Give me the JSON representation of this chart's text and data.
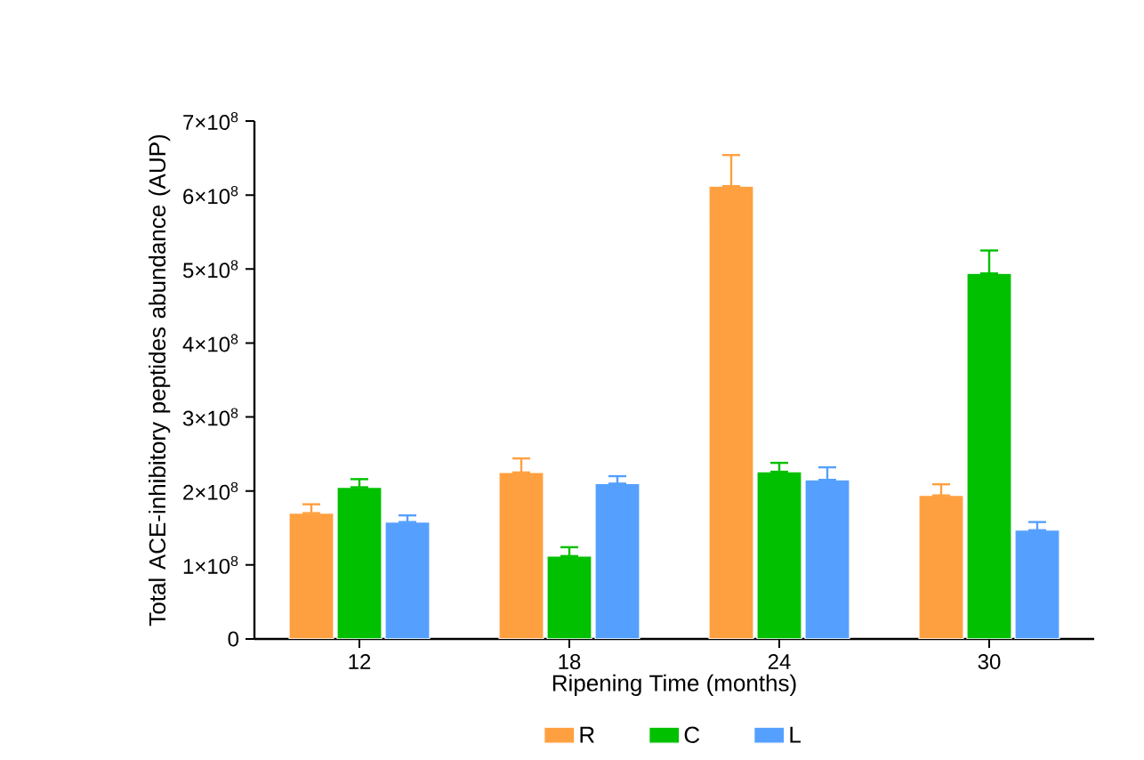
{
  "chart_data": {
    "type": "bar",
    "xlabel": "Ripening Time (months)",
    "ylabel": "Total ACE-inhibitory peptides abundance (AUP)",
    "categories": [
      "12",
      "18",
      "24",
      "30"
    ],
    "series": [
      {
        "name": "R",
        "color": "#ffa040",
        "values": [
          170000000,
          225000000,
          612000000,
          194000000
        ],
        "errors": [
          [
            170000000,
            182000000
          ],
          [
            225000000,
            244000000
          ],
          [
            612000000,
            654000000
          ],
          [
            194000000,
            209000000
          ]
        ]
      },
      {
        "name": "C",
        "color": "#00c000",
        "values": [
          205000000,
          112000000,
          226000000,
          494000000
        ],
        "errors": [
          [
            205000000,
            216000000
          ],
          [
            112000000,
            124000000
          ],
          [
            226000000,
            238000000
          ],
          [
            494000000,
            525000000
          ]
        ]
      },
      {
        "name": "L",
        "color": "#55a0ff",
        "values": [
          158000000,
          210000000,
          215000000,
          147000000
        ],
        "errors": [
          [
            158000000,
            167000000
          ],
          [
            210000000,
            220000000
          ],
          [
            215000000,
            232000000
          ],
          [
            147000000,
            158000000
          ]
        ]
      }
    ],
    "ylim": [
      0,
      700000000
    ],
    "yticks": [
      0,
      {
        "value": 100000000,
        "label": "1×10$^{8}$"
      },
      {
        "value": 200000000,
        "label": "2×10$^{8}$"
      },
      {
        "value": 300000000,
        "label": "3×10$^{8}$"
      },
      {
        "value": 400000000,
        "label": "4×10$^{8}$"
      },
      {
        "value": 500000000,
        "label": "5×10$^{8}$"
      },
      {
        "value": 600000000,
        "label": "6×10$^{8}$"
      },
      {
        "value": 700000000,
        "label": "7×10$^{8}$"
      }
    ],
    "grid": false,
    "legend": "bottom"
  }
}
